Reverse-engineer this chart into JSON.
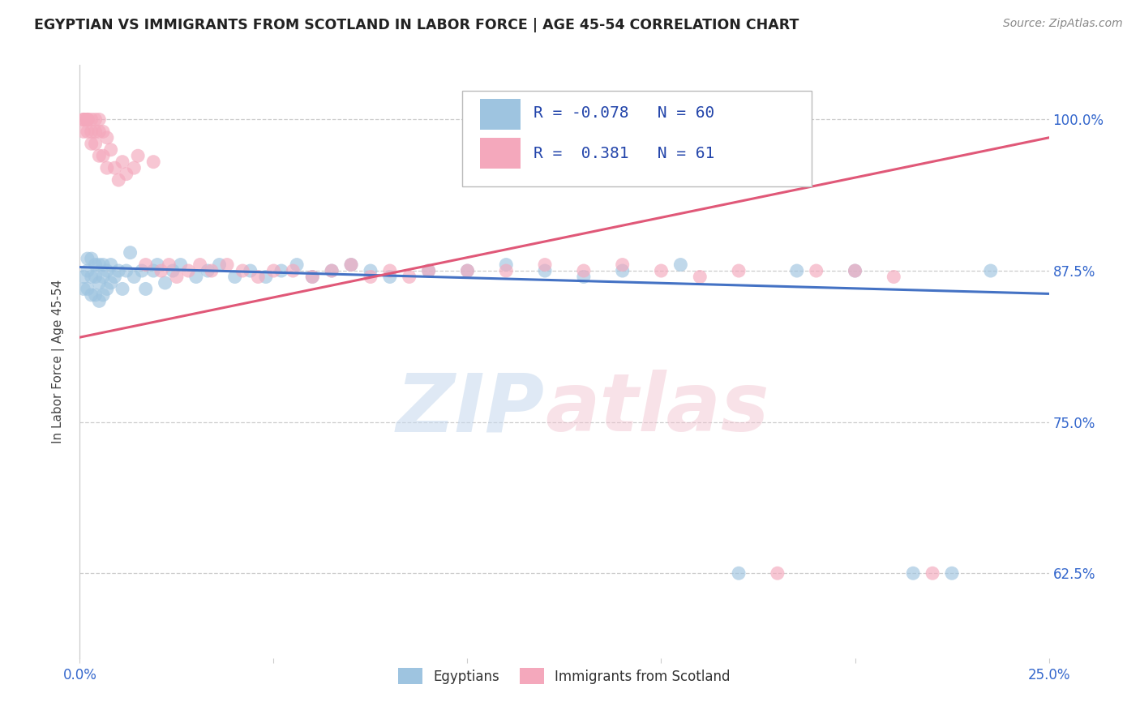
{
  "title": "EGYPTIAN VS IMMIGRANTS FROM SCOTLAND IN LABOR FORCE | AGE 45-54 CORRELATION CHART",
  "source": "Source: ZipAtlas.com",
  "ylabel": "In Labor Force | Age 45-54",
  "xlim": [
    0.0,
    0.25
  ],
  "ylim": [
    0.555,
    1.045
  ],
  "yticks": [
    0.625,
    0.75,
    0.875,
    1.0
  ],
  "yticklabels": [
    "62.5%",
    "75.0%",
    "87.5%",
    "100.0%"
  ],
  "blue_R": -0.078,
  "blue_N": 60,
  "pink_R": 0.381,
  "pink_N": 61,
  "blue_color": "#9ec4e0",
  "pink_color": "#f4a8bc",
  "blue_line_color": "#4472c4",
  "pink_line_color": "#e05878",
  "legend_label_blue": "Egyptians",
  "legend_label_pink": "Immigrants from Scotland",
  "blue_x": [
    0.001,
    0.001,
    0.002,
    0.002,
    0.002,
    0.003,
    0.003,
    0.003,
    0.004,
    0.004,
    0.004,
    0.005,
    0.005,
    0.005,
    0.006,
    0.006,
    0.006,
    0.007,
    0.007,
    0.008,
    0.008,
    0.009,
    0.01,
    0.011,
    0.012,
    0.013,
    0.014,
    0.016,
    0.017,
    0.019,
    0.02,
    0.022,
    0.024,
    0.026,
    0.03,
    0.033,
    0.036,
    0.04,
    0.044,
    0.048,
    0.052,
    0.056,
    0.06,
    0.065,
    0.07,
    0.075,
    0.08,
    0.09,
    0.1,
    0.11,
    0.12,
    0.13,
    0.14,
    0.155,
    0.17,
    0.185,
    0.2,
    0.215,
    0.225,
    0.235
  ],
  "blue_y": [
    0.87,
    0.86,
    0.885,
    0.875,
    0.86,
    0.885,
    0.87,
    0.855,
    0.88,
    0.87,
    0.855,
    0.88,
    0.865,
    0.85,
    0.88,
    0.87,
    0.855,
    0.875,
    0.86,
    0.88,
    0.865,
    0.87,
    0.875,
    0.86,
    0.875,
    0.89,
    0.87,
    0.875,
    0.86,
    0.875,
    0.88,
    0.865,
    0.875,
    0.88,
    0.87,
    0.875,
    0.88,
    0.87,
    0.875,
    0.87,
    0.875,
    0.88,
    0.87,
    0.875,
    0.88,
    0.875,
    0.87,
    0.875,
    0.875,
    0.88,
    0.875,
    0.87,
    0.875,
    0.88,
    0.625,
    0.875,
    0.875,
    0.625,
    0.625,
    0.875
  ],
  "pink_x": [
    0.001,
    0.001,
    0.001,
    0.001,
    0.002,
    0.002,
    0.002,
    0.002,
    0.003,
    0.003,
    0.003,
    0.004,
    0.004,
    0.004,
    0.005,
    0.005,
    0.005,
    0.006,
    0.006,
    0.007,
    0.007,
    0.008,
    0.009,
    0.01,
    0.011,
    0.012,
    0.014,
    0.015,
    0.017,
    0.019,
    0.021,
    0.023,
    0.025,
    0.028,
    0.031,
    0.034,
    0.038,
    0.042,
    0.046,
    0.05,
    0.055,
    0.06,
    0.065,
    0.07,
    0.075,
    0.08,
    0.085,
    0.09,
    0.1,
    0.11,
    0.12,
    0.13,
    0.14,
    0.15,
    0.16,
    0.17,
    0.18,
    0.19,
    0.2,
    0.21,
    0.22
  ],
  "pink_y": [
    1.0,
    1.0,
    0.99,
    1.0,
    1.0,
    1.0,
    0.99,
    1.0,
    1.0,
    0.99,
    0.98,
    1.0,
    0.99,
    0.98,
    1.0,
    0.99,
    0.97,
    0.99,
    0.97,
    0.985,
    0.96,
    0.975,
    0.96,
    0.95,
    0.965,
    0.955,
    0.96,
    0.97,
    0.88,
    0.965,
    0.875,
    0.88,
    0.87,
    0.875,
    0.88,
    0.875,
    0.88,
    0.875,
    0.87,
    0.875,
    0.875,
    0.87,
    0.875,
    0.88,
    0.87,
    0.875,
    0.87,
    0.875,
    0.875,
    0.875,
    0.88,
    0.875,
    0.88,
    0.875,
    0.87,
    0.875,
    0.625,
    0.875,
    0.875,
    0.87,
    0.625
  ],
  "blue_trend_x": [
    0.0,
    0.25
  ],
  "blue_trend_y": [
    0.878,
    0.856
  ],
  "pink_trend_x": [
    0.0,
    0.25
  ],
  "pink_trend_y": [
    0.82,
    0.985
  ]
}
